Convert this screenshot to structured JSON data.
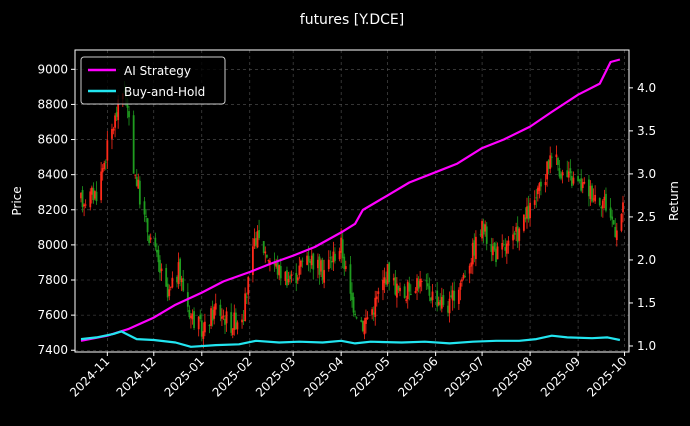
{
  "chart_data": {
    "type": "candlestick-with-line",
    "title": "futures [Y.DCE]",
    "ylabel_left": "Price",
    "ylabel_right": "Return",
    "ylim_left": [
      7390,
      9110
    ],
    "ylim_right": [
      0.93,
      4.44
    ],
    "yticks_left": [
      7400,
      7600,
      7800,
      8000,
      8200,
      8400,
      8600,
      8800,
      9000
    ],
    "yticks_right": [
      1.0,
      1.5,
      2.0,
      2.5,
      3.0,
      3.5,
      4.0
    ],
    "xticks": [
      "2024-11",
      "2024-12",
      "2025-01",
      "2025-02",
      "2025-03",
      "2025-04",
      "2025-05",
      "2025-06",
      "2025-07",
      "2025-08",
      "2025-09",
      "2025-10"
    ],
    "x_start": "2024-10-15",
    "x_end": "2025-09-30",
    "grid": true,
    "legend_position": "top-left",
    "colors": {
      "background": "#000000",
      "ai_strategy": "#ff00ff",
      "buy_and_hold": "#22e5f0",
      "candle_up": "#ff2a1a",
      "candle_down": "#1f9c1f",
      "grid": "#555555"
    },
    "series": [
      {
        "name": "AI Strategy",
        "axis": "right",
        "points": [
          [
            "2024-10-15",
            1.06
          ],
          [
            "2024-11-01",
            1.12
          ],
          [
            "2024-11-15",
            1.2
          ],
          [
            "2024-12-01",
            1.33
          ],
          [
            "2024-12-15",
            1.48
          ],
          [
            "2025-01-01",
            1.62
          ],
          [
            "2025-01-15",
            1.75
          ],
          [
            "2025-02-01",
            1.86
          ],
          [
            "2025-02-15",
            1.96
          ],
          [
            "2025-03-01",
            2.05
          ],
          [
            "2025-03-15",
            2.15
          ],
          [
            "2025-04-01",
            2.32
          ],
          [
            "2025-04-10",
            2.42
          ],
          [
            "2025-04-15",
            2.58
          ],
          [
            "2025-05-01",
            2.75
          ],
          [
            "2025-05-15",
            2.9
          ],
          [
            "2025-06-01",
            3.02
          ],
          [
            "2025-06-15",
            3.12
          ],
          [
            "2025-07-01",
            3.3
          ],
          [
            "2025-07-15",
            3.4
          ],
          [
            "2025-08-01",
            3.55
          ],
          [
            "2025-08-15",
            3.72
          ],
          [
            "2025-09-01",
            3.92
          ],
          [
            "2025-09-15",
            4.05
          ],
          [
            "2025-09-22",
            4.3
          ],
          [
            "2025-09-28",
            4.33
          ]
        ]
      },
      {
        "name": "Buy-and-Hold",
        "axis": "right",
        "points": [
          [
            "2024-10-15",
            1.08
          ],
          [
            "2024-10-25",
            1.1
          ],
          [
            "2024-11-05",
            1.14
          ],
          [
            "2024-11-10",
            1.17
          ],
          [
            "2024-11-20",
            1.08
          ],
          [
            "2024-12-01",
            1.07
          ],
          [
            "2024-12-15",
            1.04
          ],
          [
            "2024-12-25",
            0.99
          ],
          [
            "2025-01-10",
            1.01
          ],
          [
            "2025-01-25",
            1.02
          ],
          [
            "2025-02-05",
            1.06
          ],
          [
            "2025-02-20",
            1.04
          ],
          [
            "2025-03-05",
            1.05
          ],
          [
            "2025-03-20",
            1.04
          ],
          [
            "2025-04-01",
            1.06
          ],
          [
            "2025-04-10",
            1.03
          ],
          [
            "2025-04-20",
            1.05
          ],
          [
            "2025-05-10",
            1.04
          ],
          [
            "2025-05-25",
            1.05
          ],
          [
            "2025-06-10",
            1.03
          ],
          [
            "2025-06-25",
            1.05
          ],
          [
            "2025-07-10",
            1.06
          ],
          [
            "2025-07-25",
            1.06
          ],
          [
            "2025-08-05",
            1.08
          ],
          [
            "2025-08-15",
            1.12
          ],
          [
            "2025-08-25",
            1.1
          ],
          [
            "2025-09-10",
            1.09
          ],
          [
            "2025-09-20",
            1.1
          ],
          [
            "2025-09-28",
            1.07
          ]
        ]
      }
    ],
    "price_path": [
      [
        "2024-10-15",
        8250
      ],
      [
        "2024-10-25",
        8300
      ],
      [
        "2024-11-01",
        8550
      ],
      [
        "2024-11-07",
        8750
      ],
      [
        "2024-11-12",
        8900
      ],
      [
        "2024-11-18",
        8450
      ],
      [
        "2024-11-25",
        8150
      ],
      [
        "2024-12-02",
        7950
      ],
      [
        "2024-12-10",
        7700
      ],
      [
        "2024-12-17",
        7850
      ],
      [
        "2024-12-25",
        7600
      ],
      [
        "2025-01-02",
        7500
      ],
      [
        "2025-01-10",
        7650
      ],
      [
        "2025-01-20",
        7550
      ],
      [
        "2025-01-28",
        7620
      ],
      [
        "2025-02-05",
        8050
      ],
      [
        "2025-02-12",
        7950
      ],
      [
        "2025-02-20",
        7850
      ],
      [
        "2025-03-01",
        7800
      ],
      [
        "2025-03-10",
        7950
      ],
      [
        "2025-03-20",
        7850
      ],
      [
        "2025-04-01",
        8000
      ],
      [
        "2025-04-07",
        7700
      ],
      [
        "2025-04-15",
        7550
      ],
      [
        "2025-04-22",
        7650
      ],
      [
        "2025-05-01",
        7850
      ],
      [
        "2025-05-10",
        7700
      ],
      [
        "2025-05-20",
        7800
      ],
      [
        "2025-06-01",
        7700
      ],
      [
        "2025-06-10",
        7650
      ],
      [
        "2025-06-20",
        7850
      ],
      [
        "2025-07-01",
        8100
      ],
      [
        "2025-07-10",
        7950
      ],
      [
        "2025-07-20",
        8000
      ],
      [
        "2025-08-01",
        8200
      ],
      [
        "2025-08-10",
        8350
      ],
      [
        "2025-08-15",
        8550
      ],
      [
        "2025-08-22",
        8400
      ],
      [
        "2025-09-01",
        8350
      ],
      [
        "2025-09-10",
        8300
      ],
      [
        "2025-09-18",
        8250
      ],
      [
        "2025-09-25",
        8100
      ],
      [
        "2025-09-30",
        8200
      ]
    ]
  }
}
